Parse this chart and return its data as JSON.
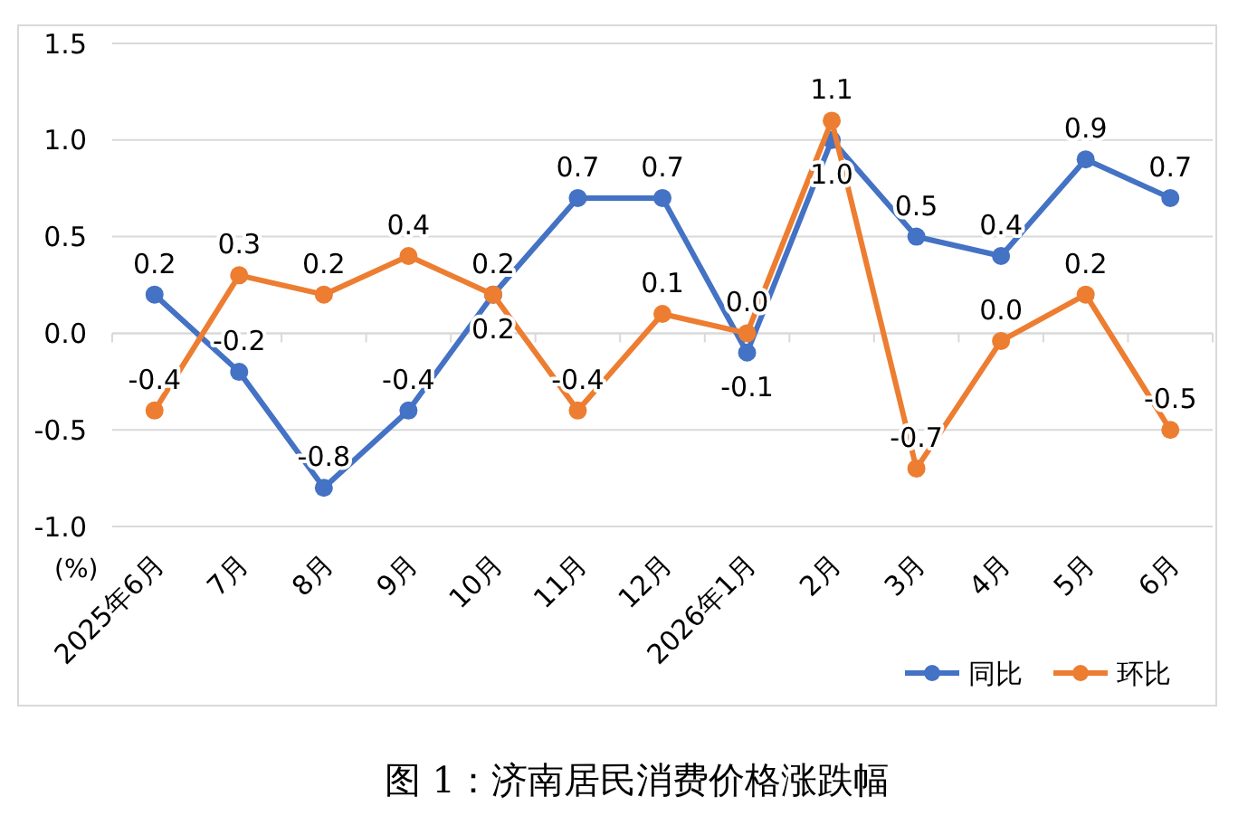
{
  "chart_data": {
    "type": "line",
    "title": "图 1：济南居民消费价格涨跌幅",
    "ylabel": "(%)",
    "categories": [
      "2025年6月",
      "7月",
      "8月",
      "9月",
      "10月",
      "11月",
      "12月",
      "2026年1月",
      "2月",
      "3月",
      "4月",
      "5月",
      "6月"
    ],
    "series": [
      {
        "name": "同比",
        "color": "#4472c4",
        "values": [
          0.2,
          -0.2,
          -0.8,
          -0.4,
          0.2,
          0.7,
          0.7,
          -0.1,
          1.0,
          0.5,
          0.4,
          0.9,
          0.7
        ],
        "value_labels": [
          "0.2",
          "-0.2",
          "-0.8",
          "-0.4",
          "0.2",
          "0.7",
          "0.7",
          "-0.1",
          "1.0",
          "0.5",
          "0.4",
          "0.9",
          "0.7"
        ]
      },
      {
        "name": "环比",
        "color": "#ed7d31",
        "values": [
          -0.4,
          0.3,
          0.2,
          0.4,
          0.2,
          -0.4,
          0.1,
          0.0,
          1.1,
          -0.7,
          -0.04,
          0.2,
          -0.5
        ],
        "value_labels": [
          "-0.4",
          "0.3",
          "0.2",
          "0.4",
          "0.2",
          "-0.4",
          "0.1",
          "0.0",
          "1.1",
          "-0.7",
          "0.0",
          "0.2",
          "-0.5"
        ]
      }
    ],
    "ylim": [
      -1.0,
      1.5
    ],
    "yticks": [
      {
        "value": -1.0,
        "label": "-1.0"
      },
      {
        "value": -0.5,
        "label": "-0.5"
      },
      {
        "value": 0,
        "label": "0.0"
      },
      {
        "value": 0.5,
        "label": "0.5"
      },
      {
        "value": 1.0,
        "label": "1.0"
      },
      {
        "value": 1.5,
        "label": "1.5"
      }
    ],
    "grid": "y",
    "legend": "bottom right",
    "marker": "circle",
    "line_style": "solid"
  }
}
